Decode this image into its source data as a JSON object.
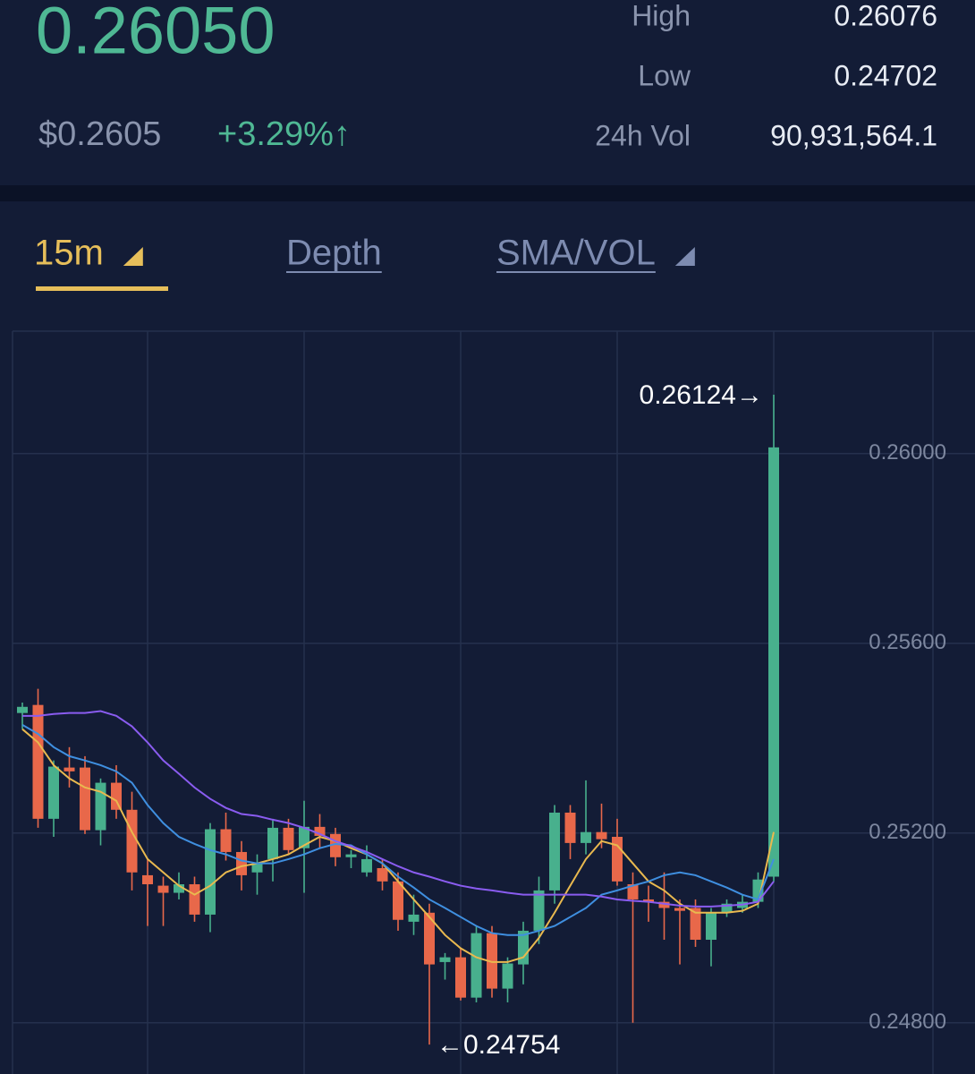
{
  "ticker": {
    "price": "0.26050",
    "fiat_price": "$0.2605",
    "change": "+3.29%↑",
    "stats": [
      {
        "label": "High",
        "value": "0.26076"
      },
      {
        "label": "Low",
        "value": "0.24702"
      },
      {
        "label": "24h Vol",
        "value": "90,931,564.1"
      }
    ]
  },
  "tabs": [
    "15m",
    "Depth",
    "SMA/VOL"
  ],
  "chart_data": {
    "type": "candlestick",
    "open": [
      0.25453,
      0.2547,
      0.2523,
      0.25338,
      0.25338,
      0.25206,
      0.25306,
      0.25249,
      0.25111,
      0.25089,
      0.25074,
      0.25092,
      0.25028,
      0.25208,
      0.2516,
      0.25117,
      0.25145,
      0.25211,
      0.25168,
      0.25213,
      0.25198,
      0.25149,
      0.25117,
      0.25126,
      0.25098,
      0.25013,
      0.25032,
      0.24928,
      0.24938,
      0.24853,
      0.24989,
      0.24872,
      0.24923,
      0.24994,
      0.25079,
      0.25243,
      0.25179,
      0.25202,
      0.25192,
      0.25092,
      0.2506,
      0.25055,
      0.25042,
      0.25042,
      0.24975,
      0.25032,
      0.25042,
      0.25055,
      0.25108
    ],
    "high": [
      0.25475,
      0.25504,
      0.25353,
      0.25381,
      0.25362,
      0.25315,
      0.25343,
      0.25287,
      0.25145,
      0.25108,
      0.25117,
      0.25108,
      0.25221,
      0.25243,
      0.25183,
      0.25155,
      0.2523,
      0.2523,
      0.25268,
      0.2524,
      0.25211,
      0.25164,
      0.25174,
      0.25145,
      0.25117,
      0.2507,
      0.25051,
      0.24947,
      0.24957,
      0.25004,
      0.25004,
      0.24938,
      0.25013,
      0.25108,
      0.25259,
      0.25259,
      0.25311,
      0.25262,
      0.2523,
      0.25117,
      0.25089,
      0.25117,
      0.2506,
      0.2506,
      0.25042,
      0.2506,
      0.2507,
      0.25117,
      0.26124
    ],
    "low": [
      0.25419,
      0.25211,
      0.25192,
      0.25296,
      0.25198,
      0.25174,
      0.2523,
      0.25079,
      0.25004,
      0.25004,
      0.2506,
      0.25013,
      0.24991,
      0.25142,
      0.25079,
      0.2507,
      0.25098,
      0.25155,
      0.25074,
      0.25168,
      0.2513,
      0.25126,
      0.25108,
      0.25079,
      0.24994,
      0.24985,
      0.24754,
      0.24891,
      0.24847,
      0.24843,
      0.24853,
      0.24843,
      0.24881,
      0.24966,
      0.25051,
      0.25145,
      0.25155,
      0.25168,
      0.25089,
      0.248,
      0.25013,
      0.24975,
      0.24923,
      0.2496,
      0.24919,
      0.25023,
      0.25032,
      0.25042,
      0.25098
    ],
    "close": [
      0.25466,
      0.2523,
      0.2534,
      0.2533,
      0.25206,
      0.25306,
      0.25249,
      0.25117,
      0.25092,
      0.25074,
      0.25092,
      0.25028,
      0.25208,
      0.2516,
      0.25111,
      0.25136,
      0.25211,
      0.25164,
      0.25213,
      0.25194,
      0.25149,
      0.25155,
      0.25145,
      0.25098,
      0.25017,
      0.25028,
      0.24923,
      0.24938,
      0.24853,
      0.24989,
      0.24872,
      0.24925,
      0.24994,
      0.25079,
      0.25243,
      0.25179,
      0.25202,
      0.25187,
      0.25098,
      0.2506,
      0.25055,
      0.25042,
      0.25036,
      0.24975,
      0.25032,
      0.25051,
      0.25055,
      0.25102,
      0.26013
    ],
    "up_color": "#48b08d",
    "down_color": "#e8684a",
    "lines": [
      {
        "color": "#e9b94f",
        "values": [
          0.25419,
          0.25391,
          0.25343,
          0.25315,
          0.25296,
          0.25287,
          0.25268,
          0.25202,
          0.25145,
          0.25117,
          0.25089,
          0.2507,
          0.25089,
          0.25117,
          0.2513,
          0.25136,
          0.25145,
          0.25155,
          0.25174,
          0.25192,
          0.25183,
          0.25168,
          0.25155,
          0.25136,
          0.25098,
          0.2506,
          0.25023,
          0.24985,
          0.24957,
          0.24938,
          0.24928,
          0.24928,
          0.24938,
          0.24979,
          0.25032,
          0.25089,
          0.25145,
          0.25183,
          0.25174,
          0.25136,
          0.25098,
          0.25079,
          0.25051,
          0.25032,
          0.25032,
          0.25032,
          0.25036,
          0.25051,
          0.25202
        ]
      },
      {
        "color": "#3f8fe0",
        "values": [
          0.25428,
          0.25409,
          0.25381,
          0.25362,
          0.25353,
          0.25343,
          0.2533,
          0.25306,
          0.25259,
          0.25221,
          0.25192,
          0.25177,
          0.25164,
          0.25155,
          0.25142,
          0.25136,
          0.25136,
          0.25145,
          0.25155,
          0.25168,
          0.25177,
          0.25174,
          0.25155,
          0.25136,
          0.25108,
          0.25085,
          0.2506,
          0.25042,
          0.25023,
          0.25004,
          0.24989,
          0.24985,
          0.24985,
          0.24994,
          0.25004,
          0.25023,
          0.25042,
          0.2507,
          0.25079,
          0.25089,
          0.25098,
          0.25111,
          0.25117,
          0.25111,
          0.25098,
          0.25085,
          0.2507,
          0.2506,
          0.25145
        ]
      },
      {
        "color": "#8a5cf0",
        "values": [
          0.25447,
          0.25447,
          0.25451,
          0.25453,
          0.25453,
          0.25457,
          0.25447,
          0.25425,
          0.25391,
          0.25353,
          0.25325,
          0.25296,
          0.25272,
          0.25253,
          0.2524,
          0.25236,
          0.25228,
          0.25221,
          0.25211,
          0.25198,
          0.25183,
          0.25172,
          0.2516,
          0.25145,
          0.2513,
          0.25117,
          0.25108,
          0.25098,
          0.25089,
          0.25083,
          0.25079,
          0.25074,
          0.2507,
          0.2507,
          0.2507,
          0.2507,
          0.2507,
          0.25066,
          0.2506,
          0.25057,
          0.25055,
          0.25051,
          0.25047,
          0.25045,
          0.25045,
          0.25047,
          0.25049,
          0.25055,
          0.25098
        ]
      }
    ],
    "ylim": [
      0.24692,
      0.26258
    ],
    "yticks": [
      {
        "value": 0.248,
        "label": "0.24800"
      },
      {
        "value": 0.252,
        "label": "0.25200"
      },
      {
        "value": 0.256,
        "label": "0.25600"
      },
      {
        "value": 0.26,
        "label": "0.26000"
      }
    ],
    "grid": true,
    "annotations": [
      {
        "value": 0.26124,
        "label": "0.26124→"
      },
      {
        "value": 0.24754,
        "label": "←0.24754"
      }
    ]
  }
}
